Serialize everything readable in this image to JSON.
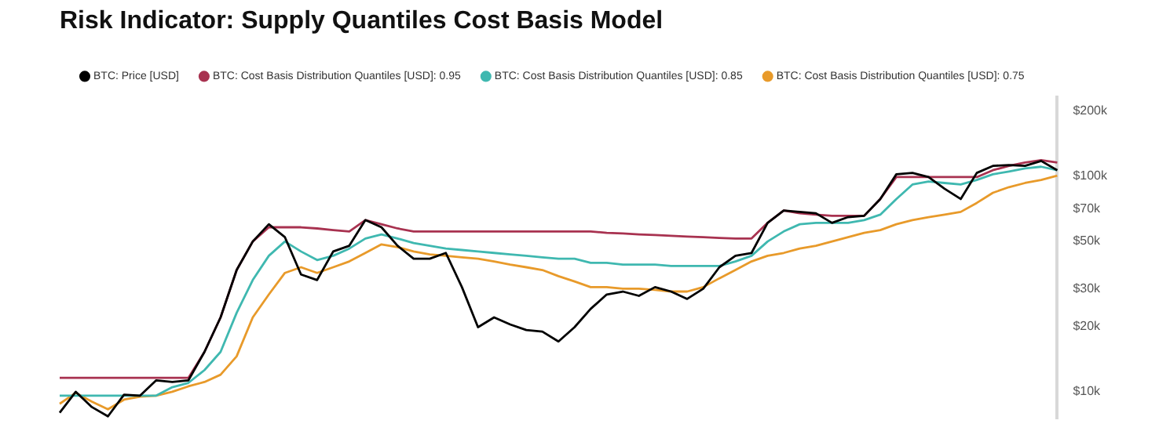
{
  "chart_data": {
    "type": "line",
    "title": "Risk Indicator: Supply Quantiles Cost Basis Model",
    "categories": [
      null,
      null,
      null,
      null,
      null,
      null,
      null,
      null,
      null,
      null,
      null,
      null,
      null,
      null,
      null,
      null,
      null,
      null,
      null,
      null,
      null,
      null,
      null,
      null,
      null,
      null,
      null,
      null,
      null,
      null,
      null,
      null,
      null,
      null,
      null,
      null,
      null,
      null,
      null,
      null,
      null,
      null,
      null,
      null,
      null,
      null,
      null,
      null,
      null,
      null,
      null,
      null,
      null,
      null,
      null,
      null,
      null,
      null,
      null,
      null,
      null,
      null,
      null
    ],
    "series": [
      {
        "name": "BTC: Price [USD]",
        "color": "#000000",
        "values": [
          8000,
          10000,
          8500,
          7700,
          9700,
          9600,
          11300,
          11100,
          11300,
          15300,
          22100,
          36600,
          49600,
          59600,
          51900,
          34900,
          32900,
          44600,
          47400,
          62300,
          57700,
          47400,
          41300,
          41300,
          43900,
          30500,
          19900,
          22100,
          20500,
          19300,
          19000,
          17100,
          19900,
          24200,
          28200,
          29100,
          27800,
          30500,
          29100,
          26900,
          30000,
          37700,
          42600,
          43900,
          60500,
          69000,
          68000,
          67000,
          60500,
          64300,
          65200,
          78000,
          101500,
          103000,
          98500,
          87000,
          78000,
          103000,
          111000,
          112000,
          111000,
          117000,
          106000
        ]
      },
      {
        "name": "BTC: Cost Basis Distribution Quantiles [USD]: 0.95",
        "color": "#a83250",
        "values": [
          11600,
          11600,
          11600,
          11600,
          11600,
          11600,
          11600,
          11600,
          11600,
          15300,
          22100,
          36600,
          49600,
          57700,
          57700,
          57700,
          57000,
          56000,
          55200,
          62300,
          59600,
          57000,
          55200,
          55200,
          55200,
          55200,
          55200,
          55200,
          55200,
          55200,
          55200,
          55200,
          55200,
          55200,
          54400,
          54000,
          53500,
          53100,
          52700,
          52300,
          51900,
          51500,
          51200,
          51200,
          60500,
          69000,
          67000,
          66000,
          65200,
          65200,
          65200,
          78000,
          98500,
          98500,
          98500,
          98500,
          98500,
          98500,
          106000,
          111000,
          115000,
          118000,
          115000
        ]
      },
      {
        "name": "BTC: Cost Basis Distribution Quantiles [USD]: 0.85",
        "color": "#3fb8b0",
        "values": [
          9600,
          9600,
          9600,
          9600,
          9600,
          9600,
          9600,
          10500,
          11000,
          12600,
          15300,
          23200,
          32900,
          42600,
          49600,
          44600,
          40700,
          42600,
          46000,
          51200,
          53500,
          51200,
          48800,
          47400,
          46000,
          45300,
          44600,
          43900,
          43200,
          42600,
          41900,
          41300,
          41300,
          39500,
          39500,
          38800,
          38800,
          38800,
          38200,
          38200,
          38200,
          38200,
          40100,
          42600,
          49600,
          55200,
          59600,
          60500,
          60500,
          60500,
          62300,
          66000,
          78000,
          91000,
          94000,
          92500,
          91000,
          95500,
          101500,
          104500,
          108000,
          110000,
          106000
        ]
      },
      {
        "name": "BTC: Cost Basis Distribution Quantiles [USD]: 0.75",
        "color": "#e89a2a",
        "values": [
          8800,
          9900,
          9000,
          8300,
          9200,
          9500,
          9600,
          10000,
          10600,
          11100,
          12000,
          14600,
          22100,
          28200,
          35500,
          37700,
          35500,
          37700,
          40100,
          43900,
          48100,
          46700,
          44600,
          43200,
          42600,
          41900,
          41300,
          40100,
          38800,
          37700,
          36600,
          34300,
          32400,
          30500,
          30500,
          30000,
          30000,
          29600,
          29100,
          29100,
          30500,
          33500,
          36600,
          40100,
          42600,
          43900,
          46000,
          47400,
          49600,
          51900,
          54400,
          56000,
          59600,
          62300,
          64300,
          66000,
          68000,
          74800,
          83300,
          88500,
          92500,
          95500,
          100000
        ]
      }
    ],
    "log": "y",
    "ylim": [
      7500,
      230000
    ],
    "yticks": [
      {
        "value": 10000,
        "label": "$10k"
      },
      {
        "value": 20000,
        "label": "$20k"
      },
      {
        "value": 30000,
        "label": "$30k"
      },
      {
        "value": 50000,
        "label": "$50k"
      },
      {
        "value": 70000,
        "label": "$70k"
      },
      {
        "value": 100000,
        "label": "$100k"
      },
      {
        "value": 200000,
        "label": "$200k"
      }
    ],
    "grid": false,
    "legend": "top left",
    "marker": "none",
    "line_style": "solid"
  }
}
